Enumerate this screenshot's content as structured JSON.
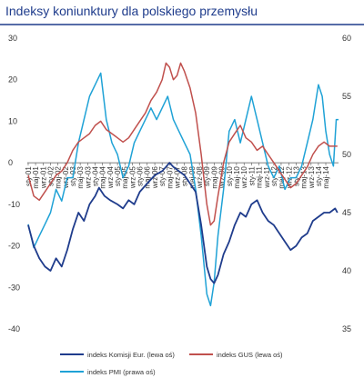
{
  "chart_data": {
    "type": "line",
    "title": "Indeksy koniunktury dla polskiego przemysłu",
    "left_axis": {
      "ylim": [
        -40,
        30
      ],
      "ticks": [
        30,
        20,
        10,
        0,
        -10,
        -20,
        -30,
        -40
      ]
    },
    "right_axis": {
      "ylim": [
        35,
        60
      ],
      "ticks": [
        60,
        55,
        50,
        45,
        40,
        35
      ]
    },
    "x_range": [
      2000.96,
      2014.9
    ],
    "x_tick_labels": [
      {
        "label": "sty-01",
        "x": 2001.0
      },
      {
        "label": "maj-01",
        "x": 2001.33
      },
      {
        "label": "wrz-01",
        "x": 2001.67
      },
      {
        "label": "sty-02",
        "x": 2002.0
      },
      {
        "label": "maj-02",
        "x": 2002.33
      },
      {
        "label": "wrz-02",
        "x": 2002.67
      },
      {
        "label": "sty-03",
        "x": 2003.0
      },
      {
        "label": "maj-03",
        "x": 2003.33
      },
      {
        "label": "wrz-03",
        "x": 2003.67
      },
      {
        "label": "sty-04",
        "x": 2004.0
      },
      {
        "label": "maj-04",
        "x": 2004.33
      },
      {
        "label": "wrz-04",
        "x": 2004.67
      },
      {
        "label": "sty-05",
        "x": 2005.0
      },
      {
        "label": "maj-05",
        "x": 2005.33
      },
      {
        "label": "wrz-05",
        "x": 2005.67
      },
      {
        "label": "sty-06",
        "x": 2006.0
      },
      {
        "label": "maj-06",
        "x": 2006.33
      },
      {
        "label": "wrz-06",
        "x": 2006.67
      },
      {
        "label": "sty-07",
        "x": 2007.0
      },
      {
        "label": "maj-07",
        "x": 2007.33
      },
      {
        "label": "wrz-07",
        "x": 2007.67
      },
      {
        "label": "sty-08",
        "x": 2008.0
      },
      {
        "label": "maj-08",
        "x": 2008.33
      },
      {
        "label": "wrz-08",
        "x": 2008.67
      },
      {
        "label": "sty-09",
        "x": 2009.0
      },
      {
        "label": "maj-09",
        "x": 2009.33
      },
      {
        "label": "wrz-09",
        "x": 2009.67
      },
      {
        "label": "sty-10",
        "x": 2010.0
      },
      {
        "label": "maj-10",
        "x": 2010.33
      },
      {
        "label": "wrz-10",
        "x": 2010.67
      },
      {
        "label": "sty-11",
        "x": 2011.0
      },
      {
        "label": "maj-11",
        "x": 2011.33
      },
      {
        "label": "wrz-11",
        "x": 2011.67
      },
      {
        "label": "sty-12",
        "x": 2012.0
      },
      {
        "label": "maj-12",
        "x": 2012.33
      },
      {
        "label": "wrz-12",
        "x": 2012.67
      },
      {
        "label": "sty-13",
        "x": 2013.0
      },
      {
        "label": "maj-13",
        "x": 2013.33
      },
      {
        "label": "wrz-13",
        "x": 2013.67
      },
      {
        "label": "sty-14",
        "x": 2014.0
      },
      {
        "label": "maj-14",
        "x": 2014.33
      }
    ],
    "series": [
      {
        "name": "indeks Komisji Eur. (lewa oś)",
        "axis": "left",
        "color": "#1f3c8c",
        "points": [
          [
            2001.0,
            -15
          ],
          [
            2001.25,
            -20
          ],
          [
            2001.5,
            -23
          ],
          [
            2001.75,
            -25
          ],
          [
            2002.0,
            -26
          ],
          [
            2002.25,
            -23
          ],
          [
            2002.5,
            -25
          ],
          [
            2002.75,
            -21
          ],
          [
            2003.0,
            -16
          ],
          [
            2003.25,
            -12
          ],
          [
            2003.5,
            -14
          ],
          [
            2003.75,
            -10
          ],
          [
            2004.0,
            -8
          ],
          [
            2004.17,
            -6
          ],
          [
            2004.42,
            -8
          ],
          [
            2004.67,
            -9
          ],
          [
            2005.0,
            -10
          ],
          [
            2005.25,
            -11
          ],
          [
            2005.5,
            -9
          ],
          [
            2005.75,
            -10
          ],
          [
            2006.0,
            -7
          ],
          [
            2006.33,
            -5
          ],
          [
            2006.67,
            -3
          ],
          [
            2007.0,
            -2
          ],
          [
            2007.17,
            -1
          ],
          [
            2007.33,
            0
          ],
          [
            2007.5,
            -1
          ],
          [
            2007.75,
            -2
          ],
          [
            2008.0,
            -3
          ],
          [
            2008.25,
            -5
          ],
          [
            2008.5,
            -7
          ],
          [
            2008.75,
            -15
          ],
          [
            2009.0,
            -25
          ],
          [
            2009.17,
            -28
          ],
          [
            2009.33,
            -29
          ],
          [
            2009.5,
            -27
          ],
          [
            2009.75,
            -22
          ],
          [
            2010.0,
            -19
          ],
          [
            2010.25,
            -15
          ],
          [
            2010.5,
            -12
          ],
          [
            2010.75,
            -13
          ],
          [
            2011.0,
            -10
          ],
          [
            2011.25,
            -9
          ],
          [
            2011.5,
            -12
          ],
          [
            2011.75,
            -14
          ],
          [
            2012.0,
            -15
          ],
          [
            2012.25,
            -17
          ],
          [
            2012.5,
            -19
          ],
          [
            2012.75,
            -21
          ],
          [
            2013.0,
            -20
          ],
          [
            2013.25,
            -18
          ],
          [
            2013.5,
            -17
          ],
          [
            2013.75,
            -14
          ],
          [
            2014.0,
            -13
          ],
          [
            2014.25,
            -12
          ],
          [
            2014.5,
            -12
          ],
          [
            2014.75,
            -11
          ],
          [
            2014.85,
            -12
          ]
        ]
      },
      {
        "name": "indeks GUS (lewa oś)",
        "axis": "left",
        "color": "#c0504d",
        "points": [
          [
            2001.0,
            -3
          ],
          [
            2001.25,
            -8
          ],
          [
            2001.5,
            -9
          ],
          [
            2001.75,
            -7
          ],
          [
            2002.0,
            -5
          ],
          [
            2002.25,
            -3
          ],
          [
            2002.5,
            -2
          ],
          [
            2002.75,
            0
          ],
          [
            2003.0,
            3
          ],
          [
            2003.25,
            5
          ],
          [
            2003.5,
            6
          ],
          [
            2003.75,
            7
          ],
          [
            2004.0,
            9
          ],
          [
            2004.25,
            10
          ],
          [
            2004.5,
            8
          ],
          [
            2004.75,
            7
          ],
          [
            2005.0,
            6
          ],
          [
            2005.25,
            5
          ],
          [
            2005.5,
            6
          ],
          [
            2005.75,
            8
          ],
          [
            2006.0,
            10
          ],
          [
            2006.25,
            12
          ],
          [
            2006.5,
            15
          ],
          [
            2006.75,
            17
          ],
          [
            2007.0,
            20
          ],
          [
            2007.17,
            24
          ],
          [
            2007.33,
            23
          ],
          [
            2007.5,
            20
          ],
          [
            2007.67,
            21
          ],
          [
            2007.83,
            24
          ],
          [
            2008.0,
            22
          ],
          [
            2008.25,
            18
          ],
          [
            2008.5,
            12
          ],
          [
            2008.75,
            2
          ],
          [
            2009.0,
            -10
          ],
          [
            2009.17,
            -15
          ],
          [
            2009.33,
            -14
          ],
          [
            2009.5,
            -8
          ],
          [
            2009.75,
            0
          ],
          [
            2010.0,
            5
          ],
          [
            2010.25,
            7
          ],
          [
            2010.5,
            9
          ],
          [
            2010.75,
            6
          ],
          [
            2011.0,
            5
          ],
          [
            2011.25,
            3
          ],
          [
            2011.5,
            4
          ],
          [
            2011.75,
            2
          ],
          [
            2012.0,
            0
          ],
          [
            2012.25,
            -2
          ],
          [
            2012.5,
            -4
          ],
          [
            2012.75,
            -6
          ],
          [
            2013.0,
            -5
          ],
          [
            2013.25,
            -3
          ],
          [
            2013.5,
            -1
          ],
          [
            2013.75,
            2
          ],
          [
            2014.0,
            4
          ],
          [
            2014.25,
            5
          ],
          [
            2014.5,
            4
          ],
          [
            2014.75,
            4
          ],
          [
            2014.85,
            4
          ]
        ]
      },
      {
        "name": "indeks PMI (prawa oś)",
        "axis": "right",
        "color": "#1fa2d6",
        "points": [
          [
            2001.0,
            44
          ],
          [
            2001.25,
            42
          ],
          [
            2001.5,
            43
          ],
          [
            2001.75,
            44
          ],
          [
            2002.0,
            45
          ],
          [
            2002.25,
            47
          ],
          [
            2002.5,
            46
          ],
          [
            2002.75,
            48
          ],
          [
            2003.0,
            48
          ],
          [
            2003.25,
            51
          ],
          [
            2003.5,
            53
          ],
          [
            2003.75,
            55
          ],
          [
            2004.0,
            56
          ],
          [
            2004.25,
            57
          ],
          [
            2004.5,
            53
          ],
          [
            2004.75,
            51
          ],
          [
            2005.0,
            50
          ],
          [
            2005.25,
            48
          ],
          [
            2005.5,
            49
          ],
          [
            2005.75,
            51
          ],
          [
            2006.0,
            52
          ],
          [
            2006.25,
            53
          ],
          [
            2006.5,
            54
          ],
          [
            2006.75,
            53
          ],
          [
            2007.0,
            54
          ],
          [
            2007.25,
            55
          ],
          [
            2007.5,
            53
          ],
          [
            2007.75,
            52
          ],
          [
            2008.0,
            51
          ],
          [
            2008.25,
            50
          ],
          [
            2008.5,
            47
          ],
          [
            2008.75,
            43
          ],
          [
            2009.0,
            38
          ],
          [
            2009.17,
            37
          ],
          [
            2009.33,
            39
          ],
          [
            2009.5,
            43
          ],
          [
            2009.75,
            47
          ],
          [
            2010.0,
            52
          ],
          [
            2010.25,
            53
          ],
          [
            2010.5,
            51
          ],
          [
            2010.75,
            53
          ],
          [
            2011.0,
            55
          ],
          [
            2011.25,
            53
          ],
          [
            2011.5,
            51
          ],
          [
            2011.75,
            49
          ],
          [
            2012.0,
            48
          ],
          [
            2012.25,
            49
          ],
          [
            2012.5,
            47
          ],
          [
            2012.75,
            48
          ],
          [
            2013.0,
            48
          ],
          [
            2013.25,
            49
          ],
          [
            2013.5,
            51
          ],
          [
            2013.75,
            53
          ],
          [
            2014.0,
            56
          ],
          [
            2014.17,
            55
          ],
          [
            2014.33,
            52
          ],
          [
            2014.5,
            50
          ],
          [
            2014.67,
            49
          ],
          [
            2014.8,
            53
          ],
          [
            2014.9,
            53
          ]
        ]
      }
    ],
    "legend_placement": "bottom",
    "grid": false
  }
}
